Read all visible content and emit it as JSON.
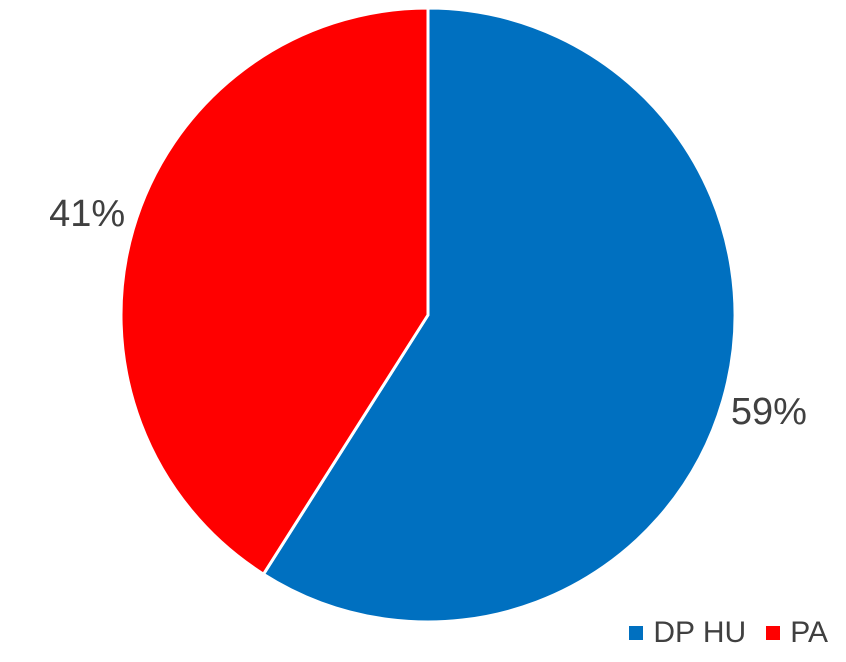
{
  "chart_data": {
    "type": "pie",
    "categories": [
      "DP HU",
      "PA"
    ],
    "values": [
      59,
      41
    ],
    "value_unit": "%",
    "colors": [
      "#0070C0",
      "#FF0000"
    ],
    "data_labels": [
      "59%",
      "41%"
    ],
    "start_angle": "12 o'clock",
    "direction": "clockwise",
    "legend_position": "bottom-right",
    "slice_border_color": "#FFFFFF"
  },
  "legend": {
    "items": [
      {
        "label": "DP HU",
        "color": "#0070C0"
      },
      {
        "label": "PA",
        "color": "#FF0000"
      }
    ]
  }
}
